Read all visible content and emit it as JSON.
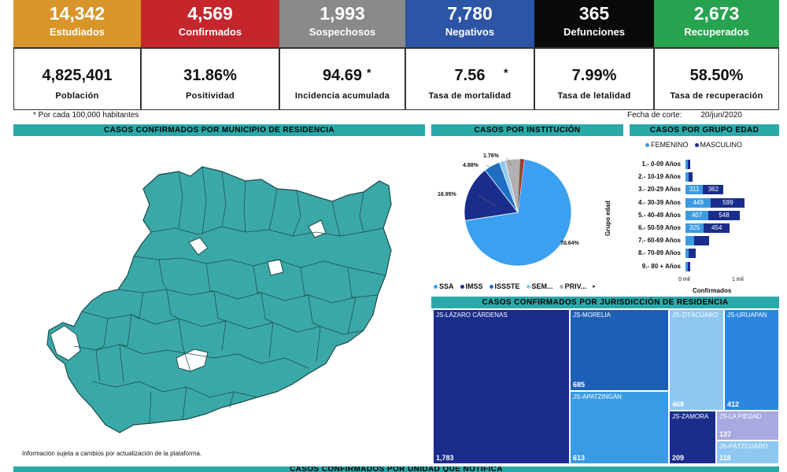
{
  "kpis": [
    {
      "value": "14,342",
      "label": "Estudiados",
      "color": "#d8962a"
    },
    {
      "value": "4,569",
      "label": "Confirmados",
      "color": "#c5262b"
    },
    {
      "value": "1,993",
      "label": "Sospechosos",
      "color": "#8a8a8a"
    },
    {
      "value": "7,780",
      "label": "Negativos",
      "color": "#2c55a6"
    },
    {
      "value": "365",
      "label": "Defunciones",
      "color": "#0a0a0a"
    },
    {
      "value": "2,673",
      "label": "Recuperados",
      "color": "#27a34f"
    }
  ],
  "stats": [
    {
      "value": "4,825,401",
      "label": "Población",
      "asterisk": ""
    },
    {
      "value": "31.86%",
      "label": "Positividad",
      "asterisk": ""
    },
    {
      "value": "94.69",
      "label": "Incidencia acumulada",
      "asterisk": "*"
    },
    {
      "value": "7.56",
      "label": "Tasa de mortalidad",
      "asterisk": "*"
    },
    {
      "value": "7.99%",
      "label": "Tasa de letalidad",
      "asterisk": ""
    },
    {
      "value": "58.50%",
      "label": "Tasa de recuperación",
      "asterisk": ""
    }
  ],
  "notes": {
    "per_habitants": "* Por cada 100,000 habitantes",
    "cutoff_label": "Fecha de corte:",
    "cutoff_value": "20/jun/2020",
    "disclaimer": "Información sujeta a cambios por actualización de la plataforma."
  },
  "sections": {
    "map_title": "CASOS CONFIRMADOS POR MUNICIPIO DE RESIDENCIA",
    "institution_title": "CASOS POR INSTITUCIÓN",
    "age_title": "CASOS POR GRUPO EDAD",
    "jurisdiction_title": "CASOS CONFIRMADOS POR JURISDICCIÓN DE RESIDENCIA",
    "unit_title": "CASOS CONFIRMADOS POR UNIDAD QUE NOTIFICA"
  },
  "colors": {
    "teal": "#2aa9a9",
    "map_fill": "#3aa8a6",
    "femenino": "#3a9be3",
    "masculino": "#1a2d8c"
  },
  "chart_data": [
    {
      "type": "pie",
      "categories": [
        "SSA",
        "IMSS",
        "ISSSTE",
        "SEM...",
        "PRIV..."
      ],
      "values": [
        70.64,
        16.95,
        4.88,
        1.76,
        5.77
      ],
      "labels": [
        "70.64%",
        "16.95%",
        "4.88%",
        "1.76%"
      ],
      "colors": [
        "#3aa0ef",
        "#1a2d8c",
        "#1e6fc4",
        "#8ec8f2",
        "#b0b0b0"
      ],
      "legend": [
        "SSA",
        "IMSS",
        "ISSSTE",
        "SEM...",
        "PRIV..."
      ],
      "legend_more": "▸"
    },
    {
      "type": "bar",
      "orientation": "horizontal",
      "ylabel": "Grupo edad",
      "xlabel": "Confirmados",
      "legend": [
        "FEMENINO",
        "MASCULINO"
      ],
      "x_ticks": [
        "0 mil",
        "1 mil"
      ],
      "categories": [
        "1.- 0-09 Años",
        "2.- 10-19 Años",
        "3.- 20-29 Años",
        "4.- 30-39 Años",
        "5.- 40-49 Años",
        "6.- 50-59 Años",
        "7.- 60-69 Años",
        "8.- 70-89 Años",
        "9.- 80 + Años"
      ],
      "series": [
        {
          "name": "FEMENINO",
          "values": [
            30,
            60,
            311,
            449,
            407,
            325,
            150,
            60,
            20
          ],
          "labels": [
            "",
            "",
            "311",
            "449",
            "407",
            "325",
            "",
            "",
            ""
          ]
        },
        {
          "name": "MASCULINO",
          "values": [
            35,
            70,
            362,
            599,
            548,
            454,
            260,
            120,
            30
          ],
          "labels": [
            "",
            "",
            "362",
            "599",
            "548",
            "454",
            "",
            "",
            ""
          ]
        }
      ]
    },
    {
      "type": "treemap",
      "categories": [
        "JS-LÁZARO CÁRDENAS",
        "JS-MORELIA",
        "JS-APATZINGÁN",
        "JS-ZITÁCUARO",
        "JS-URUAPAN",
        "JS-ZAMORA",
        "JS-LA PIEDAD",
        "JS-PÁTZCUARO"
      ],
      "values": [
        1783,
        685,
        613,
        468,
        412,
        209,
        137,
        118
      ],
      "labels": [
        "1,783",
        "685",
        "613",
        "468",
        "412",
        "209",
        "137",
        "118"
      ]
    }
  ]
}
